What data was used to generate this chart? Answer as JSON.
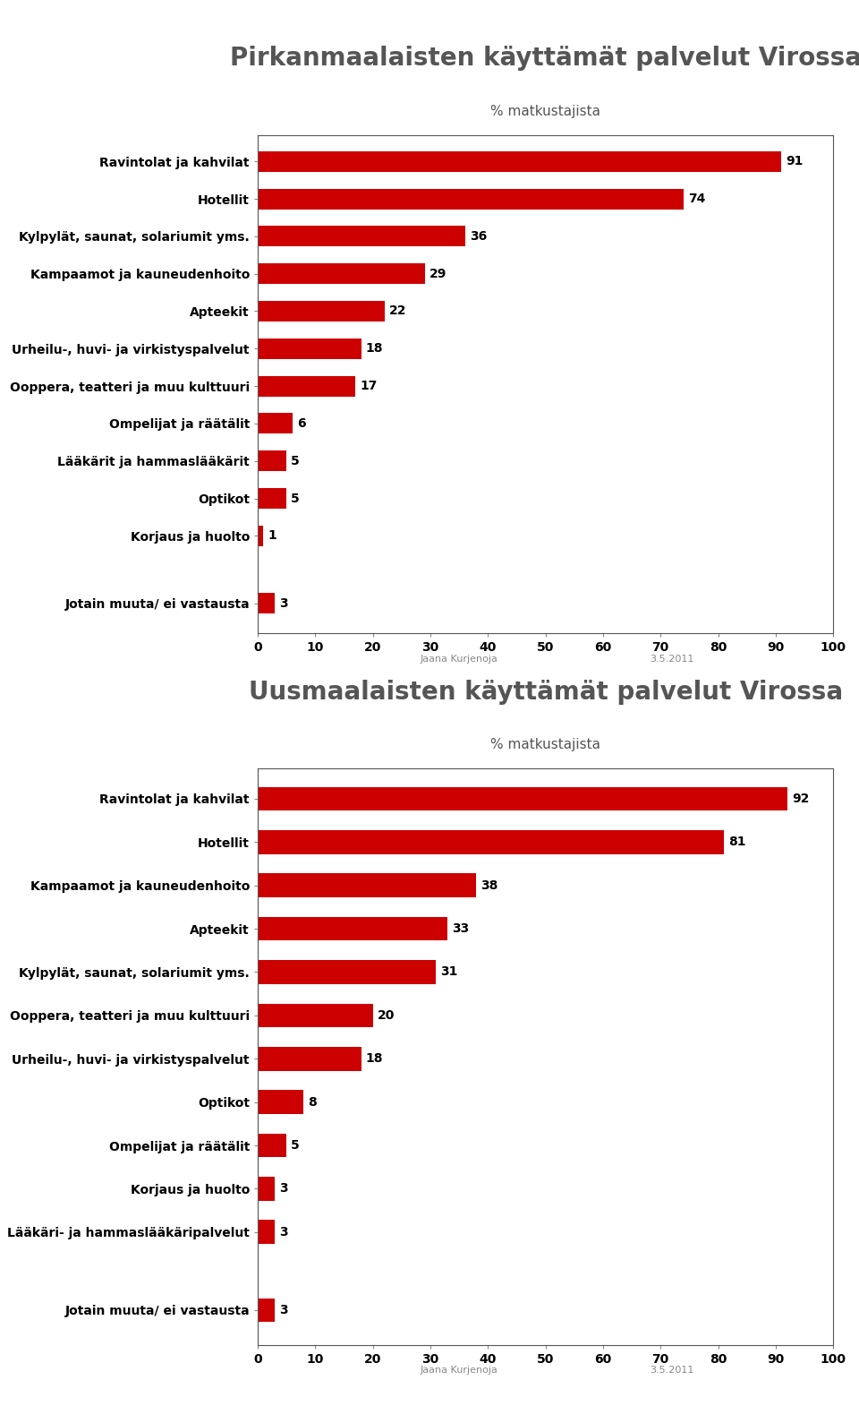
{
  "chart1": {
    "title": "Pirkanmaalaisten käyttämät palvelut Virossa",
    "subtitle": "% matkustajista",
    "categories": [
      "Ravintolat ja kahvilat",
      "Hotellit",
      "Kylpylät, saunat, solariumit yms.",
      "Kampaamot ja kauneudenhoito",
      "Apteekit",
      "Urheilu-, huvi- ja virkistyspalvelut",
      "Ooppera, teatteri ja muu kulttuuri",
      "Ompelijat ja räätälit",
      "Lääkärit ja hammaslääkärit",
      "Optikot",
      "Korjaus ja huolto",
      "Jotain muuta/ ei vastausta"
    ],
    "values": [
      91,
      74,
      36,
      29,
      22,
      18,
      17,
      6,
      5,
      5,
      1,
      3
    ],
    "bar_color": "#cc0000",
    "xlim": [
      0,
      100
    ],
    "xticks": [
      0,
      10,
      20,
      30,
      40,
      50,
      60,
      70,
      80,
      90,
      100
    ],
    "footer_left": "Jaana Kurjenoja",
    "footer_right": "3.5.2011"
  },
  "chart2": {
    "title": "Uusmaalaisten käyttämät palvelut Virossa",
    "subtitle": "% matkustajista",
    "categories": [
      "Ravintolat ja kahvilat",
      "Hotellit",
      "Kampaamot ja kauneudenhoito",
      "Apteekit",
      "Kylpylät, saunat, solariumit yms.",
      "Ooppera, teatteri ja muu kulttuuri",
      "Urheilu-, huvi- ja virkistyspalvelut",
      "Optikot",
      "Ompelijat ja räätälit",
      "Korjaus ja huolto",
      "Lääkäri- ja hammaslääkäripalvelut",
      "Jotain muuta/ ei vastausta"
    ],
    "values": [
      92,
      81,
      38,
      33,
      31,
      20,
      18,
      8,
      5,
      3,
      3,
      3
    ],
    "bar_color": "#cc0000",
    "xlim": [
      0,
      100
    ],
    "xticks": [
      0,
      10,
      20,
      30,
      40,
      50,
      60,
      70,
      80,
      90,
      100
    ],
    "footer_left": "Jaana Kurjenoja",
    "footer_right": "3.5.2011"
  },
  "bg_color": "#ffffff",
  "outer_bg": "#f0f0f0",
  "bar_label_color": "#000000",
  "title_color": "#555555",
  "label_color": "#000000",
  "box_border_color": "#555555",
  "title_fontsize": 20,
  "subtitle_fontsize": 11,
  "label_fontsize": 10,
  "tick_fontsize": 10,
  "value_fontsize": 10
}
